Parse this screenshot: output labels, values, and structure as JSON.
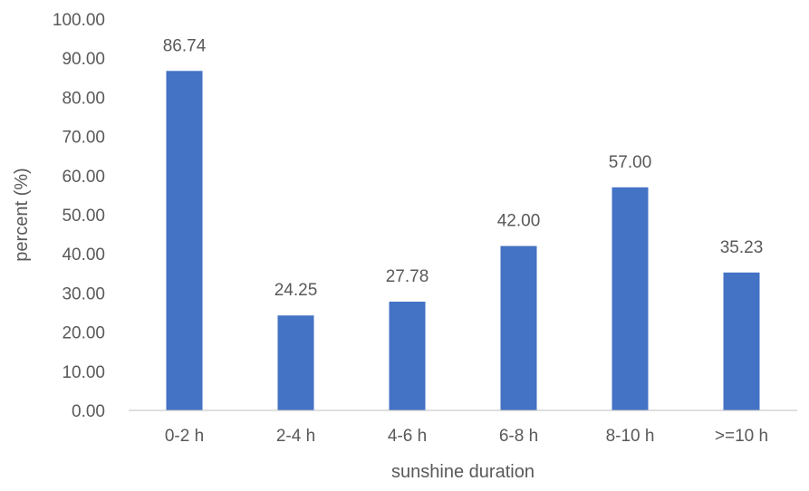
{
  "chart_data": {
    "type": "bar",
    "title": "",
    "xlabel": "sunshine duration",
    "ylabel": "percent (%)",
    "categories": [
      "0-2 h",
      "2-4 h",
      "4-6 h",
      "6-8 h",
      "8-10 h",
      ">=10 h"
    ],
    "values": [
      86.74,
      24.25,
      27.78,
      42.0,
      57.0,
      35.23
    ],
    "data_labels": [
      "86.74",
      "24.25",
      "27.78",
      "42.00",
      "57.00",
      "35.23"
    ],
    "yticks": [
      "0.00",
      "10.00",
      "20.00",
      "30.00",
      "40.00",
      "50.00",
      "60.00",
      "70.00",
      "80.00",
      "90.00",
      "100.00"
    ],
    "ylim": [
      0,
      100
    ],
    "grid": false,
    "legend": "none",
    "bar_color": "#4472C4",
    "axis_color": "#BFBFBF",
    "text_color": "#595959"
  }
}
